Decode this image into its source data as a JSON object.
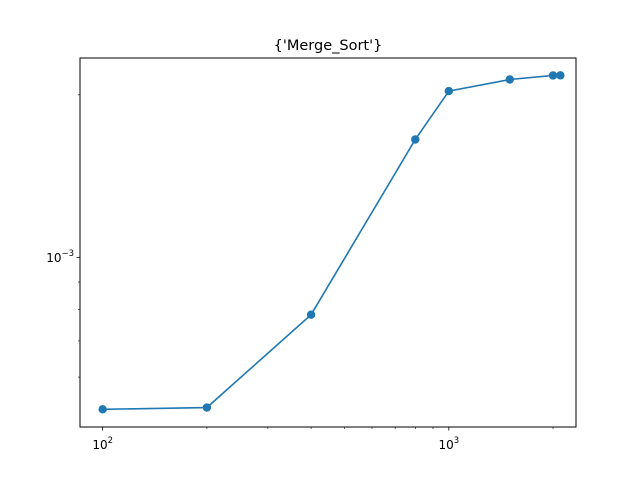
{
  "chart_data": {
    "type": "line",
    "title": "{'Merge_Sort'}",
    "xlabel": "",
    "ylabel": "",
    "xscale": "log",
    "yscale": "log",
    "xlim": [
      86,
      2330
    ],
    "ylim": [
      0.000485,
      0.00234
    ],
    "x_major_ticks": [
      {
        "value": 100,
        "base": "10",
        "exp": "2"
      },
      {
        "value": 1000,
        "base": "10",
        "exp": "3"
      }
    ],
    "y_major_ticks": [
      {
        "value": 0.001,
        "base": "10",
        "exp": "−3"
      }
    ],
    "x_minor_ticks": [
      200,
      300,
      400,
      500,
      600,
      700,
      800,
      900,
      2000
    ],
    "y_minor_ticks": [
      0.0006,
      0.0007,
      0.0008,
      0.0009,
      0.002
    ],
    "grid": false,
    "series": [
      {
        "color": "#1f77b4",
        "marker": "circle",
        "x": [
          100,
          200,
          400,
          800,
          1000,
          1500,
          2000,
          2100
        ],
        "y": [
          0.000523,
          0.000527,
          0.000783,
          0.001653,
          0.002032,
          0.002135,
          0.002172,
          0.002173
        ]
      }
    ]
  }
}
